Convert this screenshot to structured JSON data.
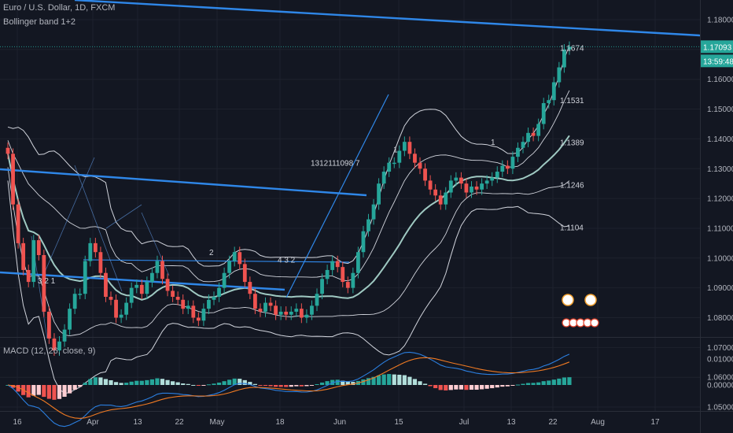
{
  "header": {
    "title": "Euro / U.S. Dollar, 1D, FXCM",
    "indicator": "Bollinger band 1+2"
  },
  "macd": {
    "label": "MACD (12, 26, close, 9)"
  },
  "colors": {
    "background": "#131722",
    "up": "#26a69a",
    "down": "#ef5350",
    "trendline": "#2f87e8",
    "band_outer": "#d1d4dc",
    "band_mid": "#9fc9c2",
    "macd_line": "#2b7fe0",
    "signal_line": "#f07a22",
    "price_tag": "#26a69a",
    "axis_text": "#b2b5be"
  },
  "chart_data": {
    "type": "candlestick",
    "instrument": "Euro / U.S. Dollar",
    "timeframe": "1D",
    "y_ticks": [
      "1.18000",
      "1.17000",
      "1.16000",
      "1.15000",
      "1.14000",
      "1.13000",
      "1.12000",
      "1.11000",
      "1.10000",
      "1.09000",
      "1.08000",
      "1.07000",
      "1.06000",
      "1.05000"
    ],
    "ylim": [
      1.043,
      1.186
    ],
    "macd_y_ticks": [
      "0.01000",
      "0.00000"
    ],
    "x_ticks": [
      "16",
      "Apr",
      "13",
      "22",
      "May",
      "18",
      "Jun",
      "15",
      "Jul",
      "13",
      "22",
      "Aug",
      "17"
    ],
    "last_price": "1.17093",
    "countdown": "13:59:48",
    "annotations": [
      {
        "text": "1.1674",
        "price": 1.1706
      },
      {
        "text": "1.1531",
        "price": 1.1531
      },
      {
        "text": "1.1389",
        "price": 1.1389
      },
      {
        "text": "1.1246",
        "price": 1.1246
      },
      {
        "text": "1.1104",
        "price": 1.1104
      },
      {
        "text": "1312111098 7",
        "price": 1.132
      },
      {
        "text": "1",
        "price": 1.1365
      },
      {
        "text": "4 3 2",
        "price": 1.0995
      },
      {
        "text": "3 2 1",
        "price": 1.0925
      },
      {
        "text": "2",
        "price": 1.102
      },
      {
        "text": "1",
        "price": 1.139
      }
    ],
    "closes": [
      1.135,
      1.118,
      1.105,
      1.096,
      1.092,
      1.106,
      1.101,
      1.082,
      1.073,
      1.069,
      1.072,
      1.076,
      1.083,
      1.088,
      1.088,
      1.099,
      1.105,
      1.102,
      1.095,
      1.087,
      1.086,
      1.08,
      1.081,
      1.085,
      1.09,
      1.091,
      1.088,
      1.092,
      1.095,
      1.099,
      1.093,
      1.089,
      1.087,
      1.086,
      1.083,
      1.084,
      1.08,
      1.079,
      1.083,
      1.086,
      1.087,
      1.09,
      1.095,
      1.099,
      1.102,
      1.098,
      1.092,
      1.088,
      1.083,
      1.082,
      1.085,
      1.084,
      1.081,
      1.082,
      1.081,
      1.082,
      1.083,
      1.08,
      1.081,
      1.084,
      1.088,
      1.093,
      1.096,
      1.099,
      1.097,
      1.092,
      1.09,
      1.095,
      1.102,
      1.109,
      1.113,
      1.118,
      1.125,
      1.129,
      1.132,
      1.132,
      1.136,
      1.139,
      1.135,
      1.132,
      1.13,
      1.126,
      1.123,
      1.121,
      1.118,
      1.122,
      1.126,
      1.127,
      1.125,
      1.122,
      1.124,
      1.123,
      1.125,
      1.126,
      1.127,
      1.129,
      1.131,
      1.13,
      1.134,
      1.137,
      1.139,
      1.142,
      1.141,
      1.145,
      1.152,
      1.153,
      1.159,
      1.164,
      1.17,
      1.1709
    ]
  }
}
